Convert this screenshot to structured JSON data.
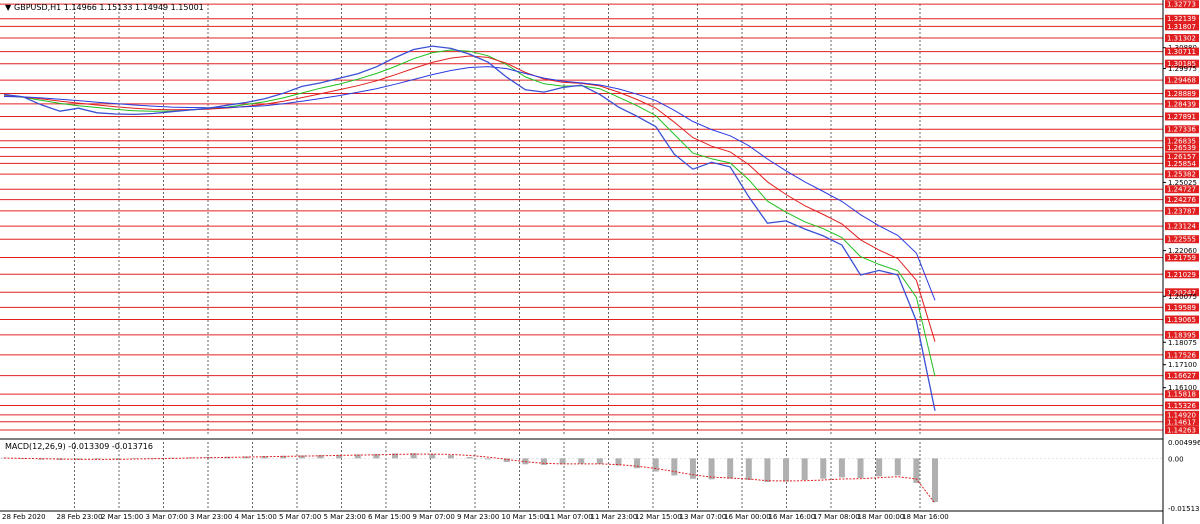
{
  "symbol_header": "GBPUSD,H1  1.14966 1.15133 1.14949 1.15001",
  "header_arrow": "▼",
  "macd_header": "MACD(12,26,9) -0.013309 -0.013716",
  "colors": {
    "background": "#ffffff",
    "price_line": "#3a50d4",
    "level_line": "#e02020",
    "level_tag_bg": "#e02020",
    "level_tag_text": "#ffffff",
    "ma_fast": "#1fbf1f",
    "ma_mid": "#e02020",
    "ma_slow": "#2a3be0",
    "macd_hist": "#b0b0b0",
    "macd_signal": "#e02020"
  },
  "chart_data": [
    {
      "type": "line",
      "name": "price",
      "ylim": [
        1.14,
        1.3278
      ],
      "x_tick_labels": [
        "28 Feb 2020",
        "28 Feb 23:00",
        "2 Mar 15:00",
        "3 Mar 07:00",
        "3 Mar 23:00",
        "4 Mar 15:00",
        "5 Mar 07:00",
        "5 Mar 23:00",
        "6 Mar 15:00",
        "9 Mar 07:00",
        "9 Mar 23:00",
        "10 Mar 15:00",
        "11 Mar 07:00",
        "11 Mar 23:00",
        "12 Mar 15:00",
        "13 Mar 07:00",
        "16 Mar 00:00",
        "16 Mar 16:00",
        "17 Mar 08:00",
        "18 Mar 00:00",
        "18 Mar 16:00"
      ],
      "y_axis_labels": [
        "1.32773",
        "1.32139",
        "1.31807",
        "1.31302",
        "1.30880",
        "1.30711",
        "1.30185",
        "1.29975",
        "1.29468",
        "1.28889",
        "1.28439",
        "1.27891",
        "1.27336",
        "1.26835",
        "1.26539",
        "1.26157",
        "1.25854",
        "1.25382",
        "1.25025",
        "1.24727",
        "1.24276",
        "1.23787",
        "1.23124",
        "1.22555",
        "1.22060",
        "1.21759",
        "1.21029",
        "1.20247",
        "1.20075",
        "1.19589",
        "1.19065",
        "1.18395",
        "1.18075",
        "1.17526",
        "1.17100",
        "1.16627",
        "1.16100",
        "1.15818",
        "1.15326",
        "1.14920",
        "1.14617",
        "1.14263"
      ],
      "level_tags": [
        "1.32773",
        "1.32139",
        "1.31807",
        "1.31302",
        "1.30711",
        "1.30185",
        "1.29468",
        "1.28889",
        "1.28439",
        "1.27891",
        "1.27336",
        "1.26835",
        "1.26539",
        "1.26157",
        "1.25854",
        "1.25382",
        "1.24727",
        "1.24276",
        "1.23787",
        "1.23124",
        "1.22555",
        "1.21759",
        "1.21029",
        "1.20247",
        "1.19589",
        "1.19065",
        "1.18395",
        "1.17526",
        "1.16627",
        "1.15818",
        "1.15326",
        "1.14920",
        "1.14617",
        "1.14263"
      ],
      "x": [
        0,
        10,
        20,
        30,
        40,
        50,
        60,
        70,
        80,
        90,
        100,
        110,
        120,
        130,
        140,
        150,
        160,
        170,
        180,
        190,
        200,
        210,
        220,
        230,
        240,
        250,
        260,
        270,
        280,
        290,
        300,
        310,
        320,
        330,
        340,
        350,
        360,
        370,
        380,
        390,
        400,
        410,
        420,
        430,
        440,
        450,
        460,
        470,
        480,
        490,
        500
      ],
      "series": [
        {
          "values": [
            1.2885,
            1.2875,
            1.284,
            1.2812,
            1.2825,
            1.2805,
            1.28,
            1.2798,
            1.2802,
            1.281,
            1.2817,
            1.2825,
            1.2838,
            1.285,
            1.2866,
            1.289,
            1.292,
            1.2935,
            1.2955,
            1.2975,
            1.3005,
            1.3045,
            1.308,
            1.3095,
            1.3085,
            1.306,
            1.3025,
            1.296,
            1.2905,
            1.2895,
            1.2915,
            1.2925,
            1.2885,
            1.283,
            1.279,
            1.2745,
            1.2625,
            1.256,
            1.259,
            1.257,
            1.244,
            1.2325,
            1.2335,
            1.23,
            1.227,
            1.223,
            1.21,
            1.212,
            1.21,
            1.19,
            1.151
          ]
        },
        {
          "values": [
            1.288,
            1.2873,
            1.286,
            1.2846,
            1.2836,
            1.2828,
            1.282,
            1.2814,
            1.2812,
            1.2813,
            1.2817,
            1.2822,
            1.283,
            1.2841,
            1.2853,
            1.287,
            1.2891,
            1.2912,
            1.293,
            1.2951,
            1.2976,
            1.3006,
            1.304,
            1.3066,
            1.3078,
            1.3073,
            1.3053,
            1.3014,
            1.2961,
            1.2931,
            1.2921,
            1.2923,
            1.291,
            1.2873,
            1.2836,
            1.2793,
            1.2711,
            1.263,
            1.2605,
            1.2587,
            1.2514,
            1.2421,
            1.2373,
            1.2331,
            1.2301,
            1.2263,
            1.218,
            1.2146,
            1.2118,
            1.2003,
            1.166
          ]
        },
        {
          "values": [
            1.2878,
            1.2874,
            1.2866,
            1.2856,
            1.2847,
            1.2839,
            1.2831,
            1.2825,
            1.282,
            1.2818,
            1.2819,
            1.2821,
            1.2826,
            1.2833,
            1.2842,
            1.2855,
            1.2871,
            1.2888,
            1.2905,
            1.2923,
            1.2944,
            1.297,
            1.2998,
            1.3024,
            1.3043,
            1.3052,
            1.3046,
            1.302,
            1.298,
            1.2952,
            1.2938,
            1.2933,
            1.2922,
            1.2895,
            1.2863,
            1.2826,
            1.2764,
            1.2697,
            1.266,
            1.2635,
            1.258,
            1.2505,
            1.245,
            1.2401,
            1.2363,
            1.2322,
            1.2253,
            1.2208,
            1.2171,
            1.2077,
            1.181
          ]
        },
        {
          "values": [
            1.2876,
            1.2874,
            1.287,
            1.2864,
            1.2858,
            1.2851,
            1.2845,
            1.2839,
            1.2834,
            1.283,
            1.2828,
            1.2827,
            1.2828,
            1.2831,
            1.2836,
            1.2844,
            1.2855,
            1.2867,
            1.288,
            1.2894,
            1.291,
            1.2929,
            1.295,
            1.2971,
            1.2989,
            1.3002,
            1.3006,
            1.2997,
            1.2976,
            1.2956,
            1.2943,
            1.2935,
            1.2926,
            1.2909,
            1.2886,
            1.2859,
            1.2816,
            1.2767,
            1.2732,
            1.2705,
            1.2662,
            1.2604,
            1.2553,
            1.2505,
            1.2463,
            1.242,
            1.2362,
            1.2314,
            1.2272,
            1.2195,
            1.199
          ]
        }
      ]
    },
    {
      "type": "bar",
      "name": "MACD",
      "ylim": [
        -0.015138,
        0.004996
      ],
      "y_axis_labels": [
        "0.004996",
        "0.00",
        "-0.015138"
      ],
      "x": [
        0,
        10,
        20,
        30,
        40,
        50,
        60,
        70,
        80,
        90,
        100,
        110,
        120,
        130,
        140,
        150,
        160,
        170,
        180,
        190,
        200,
        210,
        220,
        230,
        240,
        250,
        260,
        270,
        280,
        290,
        300,
        310,
        320,
        330,
        340,
        350,
        360,
        370,
        380,
        390,
        400,
        410,
        420,
        430,
        440,
        450,
        460,
        470,
        480,
        490,
        500
      ],
      "series": [
        {
          "values": [
            0.0002,
            -0.0002,
            -0.0004,
            -0.0005,
            -0.0004,
            -0.0003,
            -0.0002,
            -0.0001,
            0.0,
            0.0002,
            0.0003,
            0.0004,
            0.0005,
            0.0006,
            0.0007,
            0.0008,
            0.0009,
            0.001,
            0.0011,
            0.0012,
            0.0013,
            0.0015,
            0.0016,
            0.0014,
            0.001,
            0.0004,
            -0.0003,
            -0.0011,
            -0.0018,
            -0.002,
            -0.0018,
            -0.0016,
            -0.0017,
            -0.0022,
            -0.003,
            -0.004,
            -0.0052,
            -0.0062,
            -0.0064,
            -0.0062,
            -0.0066,
            -0.0072,
            -0.007,
            -0.0066,
            -0.0062,
            -0.0058,
            -0.006,
            -0.0055,
            -0.0052,
            -0.0075,
            -0.0133
          ]
        },
        {
          "values": [
            0.0001,
            0.0,
            -0.0001,
            -0.0002,
            -0.0003,
            -0.0003,
            -0.0003,
            -0.0002,
            -0.0001,
            0.0,
            0.0001,
            0.0002,
            0.0003,
            0.0004,
            0.0005,
            0.0006,
            0.0007,
            0.0008,
            0.0009,
            0.001,
            0.0011,
            0.0012,
            0.0013,
            0.0013,
            0.0012,
            0.0009,
            0.0004,
            -0.0003,
            -0.001,
            -0.0015,
            -0.0017,
            -0.0017,
            -0.0017,
            -0.0019,
            -0.0024,
            -0.0031,
            -0.004,
            -0.005,
            -0.0057,
            -0.006,
            -0.0063,
            -0.0068,
            -0.0069,
            -0.0068,
            -0.0066,
            -0.0063,
            -0.0062,
            -0.0059,
            -0.0056,
            -0.0063,
            -0.0137
          ]
        }
      ]
    }
  ]
}
